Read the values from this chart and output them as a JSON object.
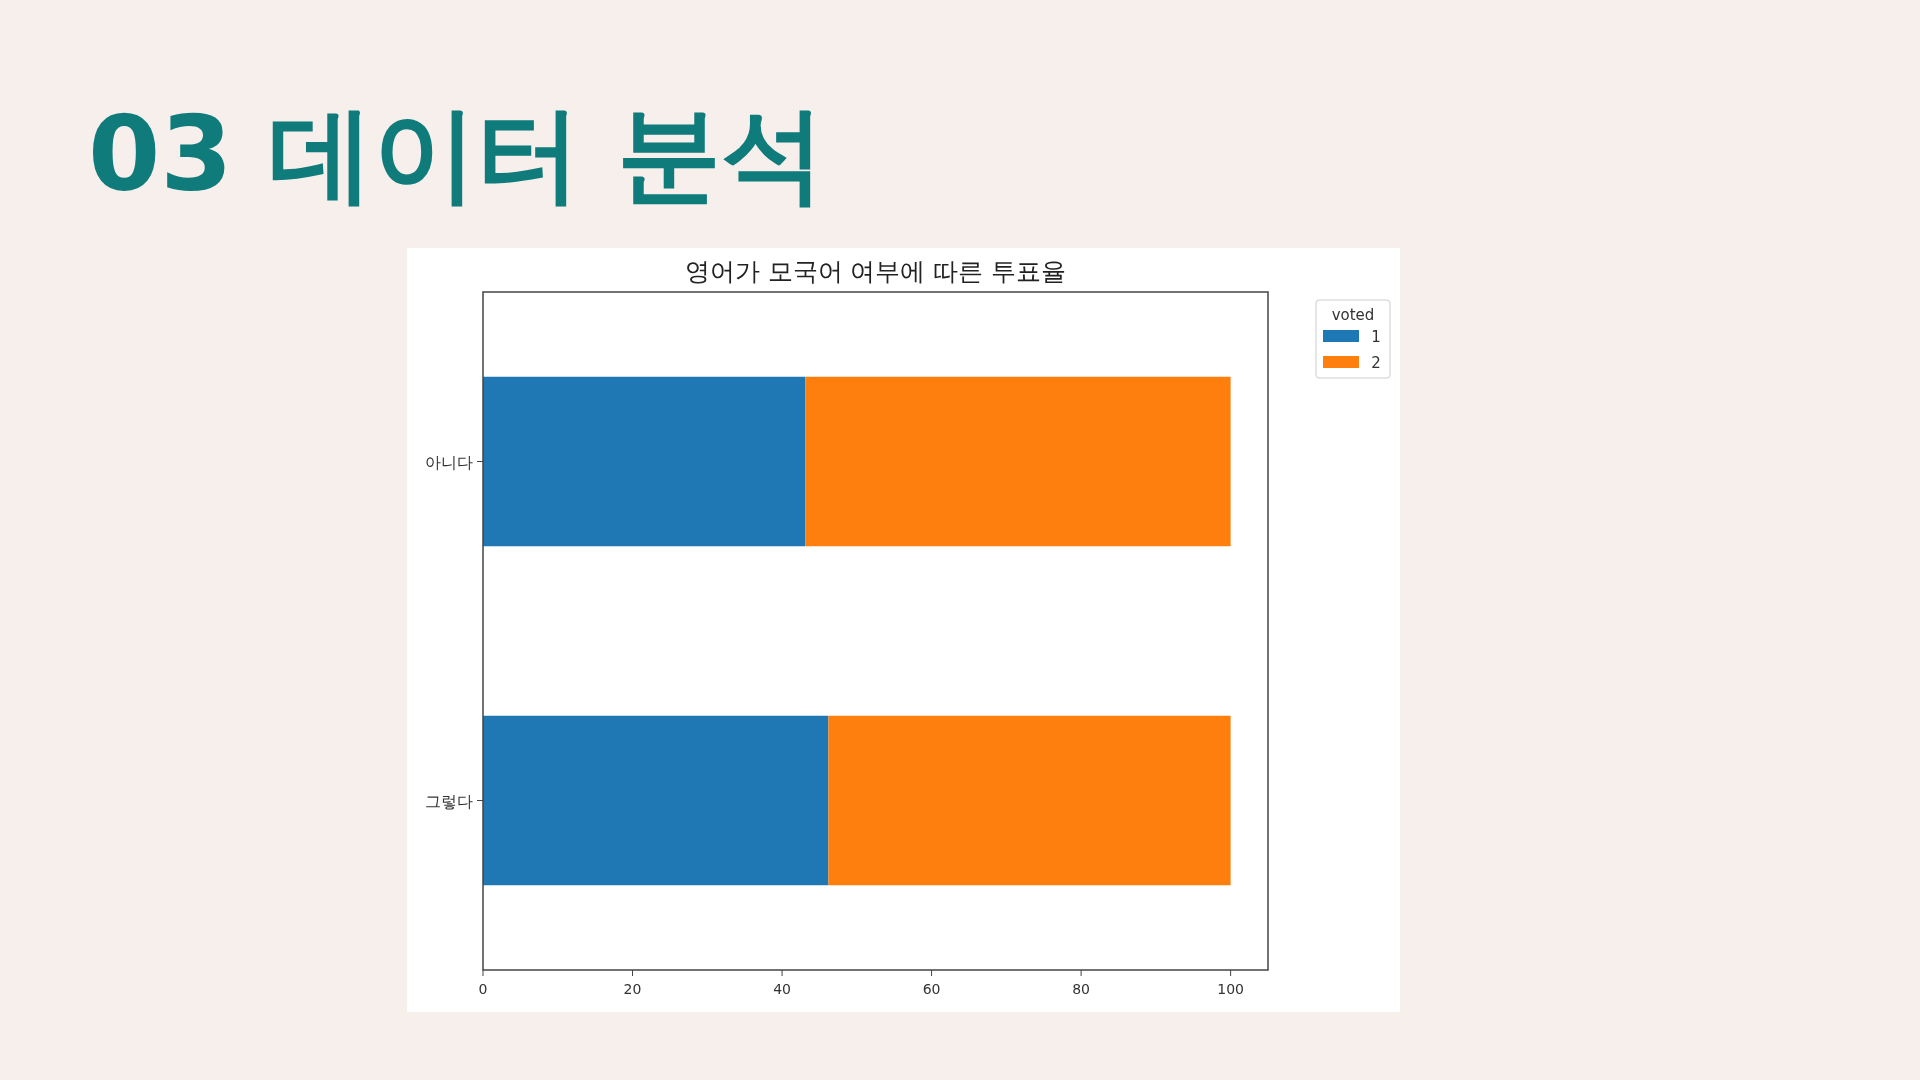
{
  "chart_data": {
    "type": "bar",
    "orientation": "horizontal",
    "stacked": true,
    "title": "03 데이터 분석",
    "subtitle": "영어가 모국어 여부에 따른 투표율",
    "categories": [
      "아니다",
      "그렇다"
    ],
    "series": [
      {
        "name": "1",
        "color": "#1f77b4",
        "values": [
          43.1,
          46.2
        ]
      },
      {
        "name": "2",
        "color": "#ff7f0e",
        "values": [
          56.9,
          53.8
        ]
      }
    ],
    "legend_title": "voted",
    "legend": "top right",
    "xlim": [
      0,
      105
    ],
    "xticks": [
      0,
      20,
      40,
      60,
      80,
      100
    ],
    "grid": false
  }
}
